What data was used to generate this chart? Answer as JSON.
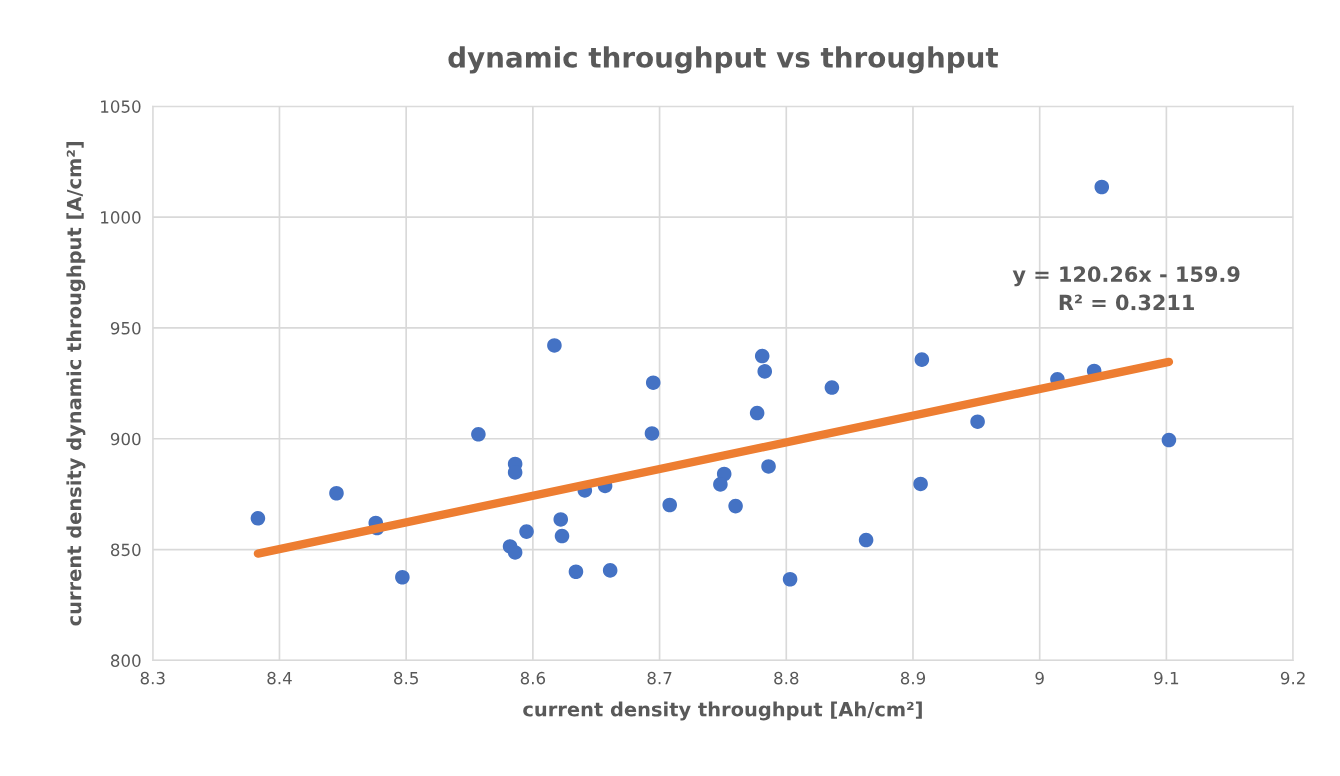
{
  "chart_data": {
    "type": "scatter",
    "title": "dynamic throughput vs throughput",
    "xlabel": "current density throughput [Ah/cm²]",
    "ylabel": "current density dynamic throughput [A/cm²]",
    "xlim": [
      8.3,
      9.2
    ],
    "xticks": [
      8.3,
      8.4,
      8.5,
      8.6,
      8.7,
      8.8,
      8.9,
      9,
      9.1,
      9.2
    ],
    "ylim": [
      800,
      1050
    ],
    "yticks": [
      800,
      850,
      900,
      950,
      1000,
      1050
    ],
    "grid": true,
    "legend": false,
    "annotations": [
      "y = 120.26x - 159.9\nR² = 0.3211"
    ],
    "series": [
      {
        "marker": "circle",
        "color": "#4472c4",
        "x": [
          8.383,
          8.445,
          8.476,
          8.477,
          8.497,
          8.557,
          8.586,
          8.586,
          8.582,
          8.586,
          8.595,
          8.622,
          8.623,
          8.634,
          8.617,
          8.695,
          8.694,
          8.641,
          8.657,
          8.661,
          8.708,
          8.781,
          8.783,
          8.777,
          8.751,
          8.748,
          8.76,
          8.786,
          8.836,
          8.803,
          8.863,
          8.907,
          8.906,
          8.951,
          9.014,
          9.043,
          9.102,
          9.049
        ],
        "values": [
          864.1,
          875.4,
          862.0,
          859.7,
          837.5,
          902.0,
          888.6,
          884.8,
          851.4,
          848.7,
          858.1,
          863.6,
          856.1,
          840.0,
          942.1,
          925.3,
          902.4,
          876.7,
          878.7,
          840.6,
          870.1,
          937.3,
          930.4,
          911.6,
          884.1,
          879.4,
          869.6,
          887.5,
          923.1,
          836.6,
          854.3,
          935.7,
          879.6,
          907.7,
          926.8,
          930.6,
          899.4,
          1013.6
        ]
      },
      {
        "type": "line",
        "marker": "none",
        "color": "#ed7d31",
        "x": [
          8.383,
          9.102
        ],
        "values": [
          848.2,
          934.7
        ]
      }
    ]
  }
}
